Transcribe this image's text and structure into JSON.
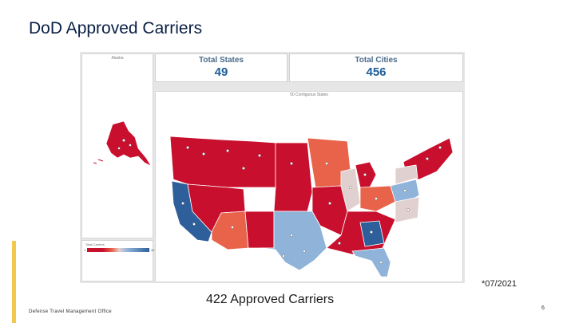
{
  "slide": {
    "title": "DoD Approved Carriers",
    "date_note": "*07/2021",
    "summary": "422 Approved Carriers",
    "footer_org": "Defense Travel Management Office",
    "page_number": "6"
  },
  "dashboard": {
    "alaska_label": "Alaska",
    "map_label": "50 Contiguous States",
    "legend": {
      "title": "Total Carriers",
      "min": "1",
      "max": "44"
    },
    "kpis": {
      "states": {
        "label": "Total States",
        "value": "49"
      },
      "cities": {
        "label": "Total Cities",
        "value": "456"
      }
    }
  },
  "colors": {
    "dark_red": "#c8102e",
    "mid_red": "#e8634a",
    "neutral": "#e0d0d0",
    "light_blue": "#8fb3d9",
    "dark_blue": "#2f5f9a",
    "title_navy": "#0a1f44",
    "gold_accent": "#f2c94c"
  }
}
